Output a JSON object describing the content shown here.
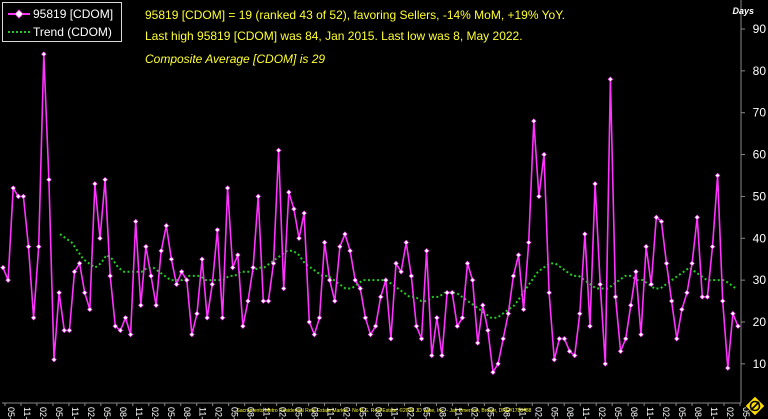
{
  "chart_data": {
    "type": "line",
    "units_label": "Days",
    "ylim": [
      0,
      90
    ],
    "yticks": [
      10,
      20,
      30,
      40,
      50,
      60,
      70,
      80,
      90
    ],
    "grid": false,
    "legend_placement": "top-left",
    "x_tick_labels": [
      "05-14",
      "11-14",
      "02-15",
      "05-15",
      "11-15",
      "02-16",
      "05-16",
      "08-16",
      "11-16",
      "02-17",
      "05-17",
      "08-17",
      "11-17",
      "02-18",
      "05-18",
      "08-18",
      "11-18",
      "02-19",
      "05-19",
      "08-19",
      "11-19",
      "02-20",
      "05-20",
      "08-20",
      "11-20",
      "02-21",
      "05-21",
      "08-21",
      "11-21",
      "02-22",
      "05-22",
      "08-22",
      "11-22",
      "02-23",
      "05-23",
      "08-23",
      "11-23",
      "02-24",
      "05-24",
      "08-24",
      "11-24",
      "02-25",
      "05-25",
      "08-25",
      "11-25",
      "02-26",
      "05-26"
    ],
    "series": [
      {
        "name": "95819 [CDOM]",
        "color": "#ff33ff",
        "values": [
          33,
          30,
          52,
          50,
          50,
          38,
          21,
          38,
          84,
          54,
          11,
          27,
          18,
          18,
          32,
          34,
          27,
          23,
          53,
          40,
          54,
          31,
          19,
          18,
          21,
          17,
          44,
          24,
          38,
          31,
          24,
          37,
          43,
          35,
          29,
          32,
          30,
          17,
          22,
          35,
          21,
          29,
          42,
          21,
          52,
          33,
          36,
          19,
          25,
          33,
          50,
          25,
          25,
          34,
          61,
          28,
          51,
          47,
          40,
          46,
          20,
          17,
          21,
          39,
          30,
          25,
          38,
          41,
          37,
          30,
          28,
          21,
          17,
          19,
          26,
          30,
          16,
          34,
          32,
          39,
          31,
          19,
          16,
          37,
          12,
          21,
          12,
          27,
          27,
          19,
          21,
          34,
          30,
          15,
          24,
          18,
          8,
          10,
          16,
          22,
          31,
          36,
          23,
          39,
          68,
          50,
          60,
          27,
          11,
          16,
          16,
          13,
          12,
          22,
          41,
          19,
          53,
          29,
          10,
          78,
          26,
          13,
          16,
          24,
          32,
          17,
          38,
          29,
          45,
          44,
          34,
          25,
          16,
          23,
          27,
          34,
          45,
          26,
          26,
          38,
          55,
          25,
          9,
          22,
          19
        ]
      },
      {
        "name": "Trend (CDOM)",
        "color": "#22cc22",
        "values": [
          41,
          40,
          39,
          37,
          35,
          34,
          33,
          34,
          36,
          35,
          33,
          32,
          32,
          32,
          32,
          33,
          33,
          32,
          31,
          30,
          30,
          30,
          31,
          31,
          31,
          30,
          30,
          30,
          30,
          31,
          31,
          32,
          32,
          32,
          33,
          33,
          34,
          35,
          36,
          37,
          37,
          36,
          34,
          33,
          32,
          31,
          31,
          30,
          29,
          28,
          28,
          29,
          30,
          30,
          30,
          30,
          30,
          29,
          28,
          27,
          26,
          26,
          25,
          25,
          26,
          26,
          27,
          27,
          27,
          26,
          25,
          24,
          23,
          22,
          21,
          21,
          22,
          23,
          24,
          26,
          28,
          30,
          32,
          33,
          34,
          34,
          33,
          32,
          31,
          31,
          30,
          29,
          28,
          28,
          28,
          29,
          30,
          31,
          31,
          30,
          30,
          29,
          28,
          28,
          29,
          30,
          31,
          32,
          33,
          32,
          31,
          30,
          30,
          30,
          30,
          29,
          28
        ]
      }
    ]
  },
  "summary": {
    "line1": "95819 [CDOM] = 19 (ranked 43 of 52), favoring Sellers, -14% MoM, +19% YoY.",
    "line2": "Last high 95819 [CDOM] was 84, Jan 2015. Last low was 8, May 2022.",
    "line3": "Composite Average [CDOM] is 29"
  },
  "footer": "Sacramento Metro Residential Real Estate Market - No B.S. Real Estate, ©2026 JD Wise, Inc. - Jay Emerson, Broker, DRE#1788488",
  "logo_icon": "no-bs-logo-icon"
}
